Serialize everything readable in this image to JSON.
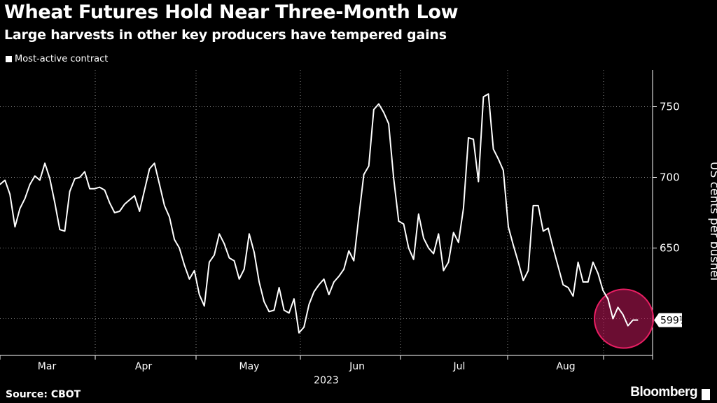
{
  "chart_data": {
    "type": "line",
    "title": "Wheat Futures Hold Near Three-Month Low",
    "subtitle": "Large harvests in other key producers have tempered gains",
    "legend": [
      "Most-active contract"
    ],
    "ylabel": "US cents per bushel",
    "xlabel": "2023",
    "source": "Source: CBOT",
    "brand": "Bloomberg",
    "last_value_label": "599¼",
    "ylim": [
      574,
      776
    ],
    "y_ticks": [
      650,
      700,
      750
    ],
    "y_tick_labels": [
      "650",
      "700",
      "750"
    ],
    "x_month_labels": [
      "Mar",
      "Apr",
      "May",
      "Jun",
      "Jul",
      "Aug"
    ],
    "series": [
      {
        "values": [
          695,
          698,
          688,
          665,
          678,
          685,
          695,
          701,
          698,
          710,
          699,
          682,
          663,
          662,
          690,
          699,
          700,
          704,
          692,
          692,
          693,
          691,
          682,
          675,
          676,
          681,
          684,
          687,
          676,
          691,
          706,
          710,
          695,
          680,
          672,
          656,
          650,
          638,
          628,
          634,
          617,
          609,
          640,
          645,
          660,
          653,
          643,
          641,
          628,
          635,
          660,
          647,
          626,
          612,
          605,
          606,
          622,
          606,
          604,
          614,
          590,
          594,
          610,
          619,
          624,
          628,
          617,
          626,
          630,
          635,
          648,
          641,
          672,
          702,
          708,
          748,
          752,
          746,
          738,
          699,
          669,
          667,
          650,
          642,
          674,
          657,
          650,
          646,
          660,
          634,
          640,
          661,
          654,
          678,
          728,
          727,
          697,
          757,
          759,
          720,
          713,
          705,
          665,
          652,
          640,
          627,
          634,
          680,
          680,
          662,
          664,
          650,
          637,
          624,
          622,
          616,
          640,
          626,
          626,
          640,
          632,
          620,
          614,
          600,
          608,
          603,
          595,
          599,
          599
        ]
      }
    ],
    "colors": {
      "line": "#ffffff",
      "background": "#000000",
      "grid": "#888888",
      "highlight": "#c2185b"
    }
  }
}
